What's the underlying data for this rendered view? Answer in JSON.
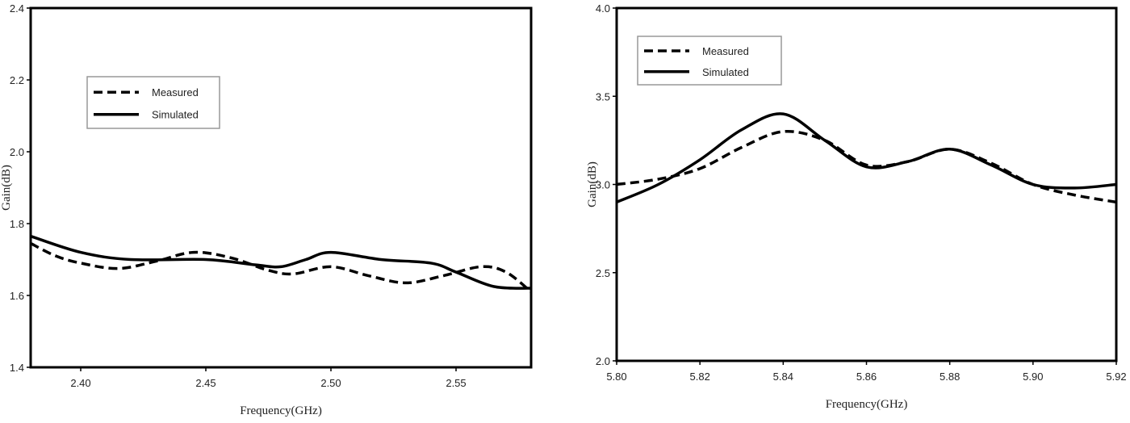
{
  "chart_data": [
    {
      "type": "line",
      "xlabel": "Frequency(GHz)",
      "ylabel": "Gain(dB)",
      "xlim": [
        2.38,
        2.58
      ],
      "ylim": [
        1.4,
        2.4
      ],
      "xticks": [
        "2.40",
        "2.45",
        "2.50",
        "2.55"
      ],
      "yticks": [
        "1.4",
        "1.6",
        "1.8",
        "2.0",
        "2.2",
        "2.4"
      ],
      "legend": "upper-left",
      "grid": false,
      "series": [
        {
          "name": "Measured",
          "style": "dashed",
          "x": [
            2.38,
            2.39,
            2.4,
            2.415,
            2.43,
            2.445,
            2.46,
            2.475,
            2.485,
            2.5,
            2.515,
            2.53,
            2.545,
            2.56,
            2.57,
            2.58
          ],
          "y": [
            1.745,
            1.71,
            1.69,
            1.675,
            1.695,
            1.72,
            1.705,
            1.67,
            1.66,
            1.68,
            1.655,
            1.635,
            1.655,
            1.68,
            1.665,
            1.61
          ]
        },
        {
          "name": "Simulated",
          "style": "solid",
          "x": [
            2.38,
            2.4,
            2.42,
            2.45,
            2.47,
            2.48,
            2.49,
            2.5,
            2.52,
            2.54,
            2.55,
            2.565,
            2.58
          ],
          "y": [
            1.765,
            1.72,
            1.7,
            1.7,
            1.685,
            1.68,
            1.7,
            1.72,
            1.7,
            1.69,
            1.665,
            1.625,
            1.62
          ]
        }
      ]
    },
    {
      "type": "line",
      "xlabel": "Frequency(GHz)",
      "ylabel": "Gain(dB)",
      "xlim": [
        5.8,
        5.92
      ],
      "ylim": [
        2.0,
        4.0
      ],
      "xticks": [
        "5.80",
        "5.82",
        "5.84",
        "5.86",
        "5.88",
        "5.90",
        "5.92"
      ],
      "yticks": [
        "2.0",
        "2.5",
        "3.0",
        "3.5",
        "4.0"
      ],
      "legend": "upper-left",
      "grid": false,
      "series": [
        {
          "name": "Measured",
          "style": "dashed",
          "x": [
            5.8,
            5.81,
            5.82,
            5.83,
            5.84,
            5.85,
            5.86,
            5.87,
            5.88,
            5.89,
            5.9,
            5.91,
            5.92
          ],
          "y": [
            3.0,
            3.03,
            3.09,
            3.21,
            3.3,
            3.25,
            3.11,
            3.13,
            3.2,
            3.12,
            3.0,
            2.94,
            2.9
          ]
        },
        {
          "name": "Simulated",
          "style": "solid",
          "x": [
            5.8,
            5.81,
            5.82,
            5.83,
            5.84,
            5.85,
            5.86,
            5.87,
            5.88,
            5.89,
            5.9,
            5.91,
            5.92
          ],
          "y": [
            2.9,
            3.0,
            3.14,
            3.31,
            3.4,
            3.25,
            3.1,
            3.13,
            3.2,
            3.11,
            3.0,
            2.98,
            3.0
          ]
        }
      ]
    }
  ]
}
